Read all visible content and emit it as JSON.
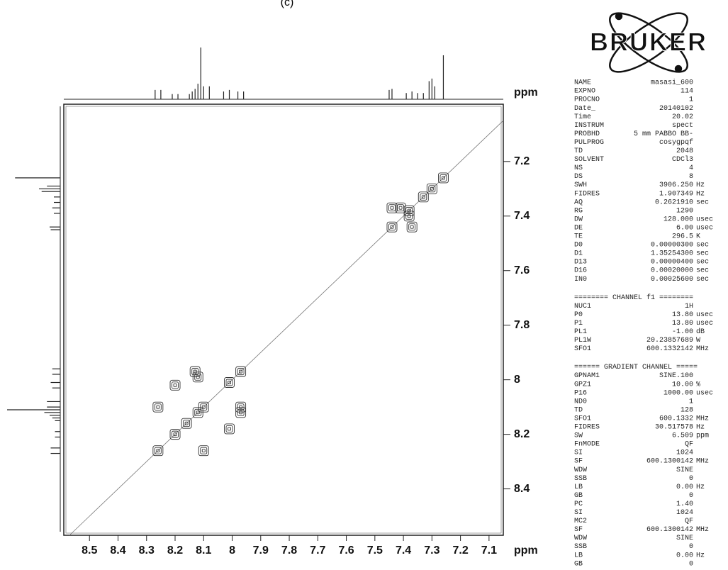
{
  "chart_data": {
    "type": "cosy",
    "panel_label": "(c)",
    "x_label": "ppm",
    "y_label": "ppm",
    "xlim": [
      8.59,
      7.05
    ],
    "ylim": [
      6.99,
      8.57
    ],
    "xticks": [
      8.5,
      8.4,
      8.3,
      8.2,
      8.1,
      8.0,
      7.9,
      7.8,
      7.7,
      7.6,
      7.5,
      7.4,
      7.3,
      7.2,
      7.1
    ],
    "yticks": [
      7.2,
      7.4,
      7.6,
      7.8,
      8.0,
      8.2,
      8.4
    ],
    "color": "#333333",
    "peaks": {
      "x": [
        8.26,
        8.2,
        8.16,
        8.12,
        8.1,
        8.01,
        7.97,
        7.44,
        7.38,
        7.33,
        7.3,
        7.26,
        8.26,
        8.1,
        8.2,
        8.13,
        8.12,
        7.97,
        7.97,
        8.01,
        7.44,
        7.41,
        7.38,
        7.37
      ],
      "y": [
        8.26,
        8.2,
        8.16,
        8.12,
        8.1,
        8.01,
        7.97,
        7.44,
        7.38,
        7.33,
        7.3,
        7.26,
        8.1,
        8.26,
        8.02,
        7.97,
        7.99,
        8.12,
        8.1,
        8.18,
        7.37,
        7.37,
        7.4,
        7.44
      ]
    },
    "projection": {
      "x": [
        8.27,
        8.25,
        8.21,
        8.19,
        8.15,
        8.14,
        8.13,
        8.12,
        8.11,
        8.1,
        8.08,
        8.03,
        8.01,
        7.98,
        7.96,
        7.45,
        7.44,
        7.39,
        7.37,
        7.35,
        7.33,
        7.31,
        7.3,
        7.29,
        7.26
      ],
      "values": [
        0.18,
        0.18,
        0.1,
        0.1,
        0.1,
        0.15,
        0.2,
        0.3,
        1.0,
        0.25,
        0.25,
        0.15,
        0.18,
        0.15,
        0.15,
        0.18,
        0.2,
        0.12,
        0.15,
        0.12,
        0.12,
        0.35,
        0.4,
        0.25,
        0.85
      ]
    }
  },
  "logo": "BRUKER",
  "parameters": {
    "acquisition": [
      [
        "NAME",
        "masasi_600"
      ],
      [
        "EXPNO",
        "114"
      ],
      [
        "PROCNO",
        "1"
      ],
      [
        "Date_",
        "20140102"
      ],
      [
        "Time",
        "20.02"
      ],
      [
        "INSTRUM",
        "spect"
      ],
      [
        "PROBHD",
        "5 mm PABBO BB-"
      ],
      [
        "PULPROG",
        "cosygpqf"
      ],
      [
        "TD",
        "2048"
      ],
      [
        "SOLVENT",
        "CDCl3"
      ],
      [
        "NS",
        "4"
      ],
      [
        "DS",
        "8"
      ],
      [
        "SWH",
        "3906.250",
        "Hz"
      ],
      [
        "FIDRES",
        "1.907349",
        "Hz"
      ],
      [
        "AQ",
        "0.2621910",
        "sec"
      ],
      [
        "RG",
        "1290"
      ],
      [
        "DW",
        "128.000",
        "usec"
      ],
      [
        "DE",
        "6.00",
        "usec"
      ],
      [
        "TE",
        "296.5",
        "K"
      ],
      [
        "D0",
        "0.00000300",
        "sec"
      ],
      [
        "D1",
        "1.35254300",
        "sec"
      ],
      [
        "D13",
        "0.00000400",
        "sec"
      ],
      [
        "D16",
        "0.00020000",
        "sec"
      ],
      [
        "IN0",
        "0.00025600",
        "sec"
      ]
    ],
    "channel_f1": {
      "header": "======== CHANNEL f1 ========",
      "rows": [
        [
          "NUC1",
          "1H"
        ],
        [
          "P0",
          "13.80",
          "usec"
        ],
        [
          "P1",
          "13.80",
          "usec"
        ],
        [
          "PL1",
          "-1.00",
          "dB"
        ],
        [
          "PL1W",
          "20.23857689",
          "W"
        ],
        [
          "SFO1",
          "600.1332142",
          "MHz"
        ]
      ]
    },
    "gradient_channel": {
      "header": "====== GRADIENT CHANNEL =====",
      "rows": [
        [
          "GPNAM1",
          "SINE.100"
        ],
        [
          "GPZ1",
          "10.00",
          "%"
        ],
        [
          "P16",
          "1000.00",
          "usec"
        ],
        [
          "ND0",
          "1"
        ],
        [
          "TD",
          "128"
        ],
        [
          "SFO1",
          "600.1332",
          "MHz"
        ],
        [
          "FIDRES",
          "30.517578",
          "Hz"
        ],
        [
          "SW",
          "6.509",
          "ppm"
        ],
        [
          "FnMODE",
          "QF"
        ],
        [
          "SI",
          "1024"
        ],
        [
          "SF",
          "600.1300142",
          "MHz"
        ],
        [
          "WDW",
          "SINE"
        ],
        [
          "SSB",
          "0"
        ],
        [
          "LB",
          "0.00",
          "Hz"
        ],
        [
          "GB",
          "0"
        ],
        [
          "PC",
          "1.40"
        ],
        [
          "SI",
          "1024"
        ],
        [
          "MC2",
          "QF"
        ],
        [
          "SF",
          "600.1300142",
          "MHz"
        ],
        [
          "WDW",
          "SINE"
        ],
        [
          "SSB",
          "0"
        ],
        [
          "LB",
          "0.00",
          "Hz"
        ],
        [
          "GB",
          "0"
        ]
      ]
    }
  }
}
